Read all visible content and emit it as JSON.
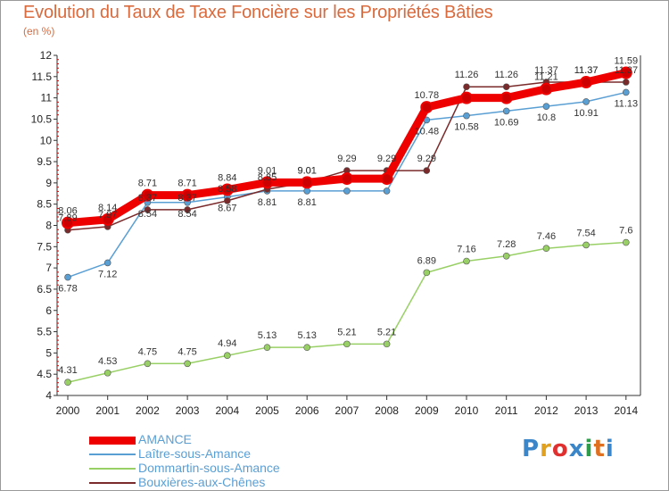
{
  "title": "Evolution du Taux de Taxe Foncière sur les Propriétés Bâties",
  "unit_label": "(en %)",
  "logo": {
    "text": "Proxiti",
    "letters": [
      "P",
      "r",
      "o",
      "x",
      "i",
      "t",
      "i"
    ],
    "colors": [
      "#3a86c8",
      "#e0a020",
      "#e03030",
      "#3a86c8",
      "#2e9c4a",
      "#e07020",
      "#3a86c8"
    ]
  },
  "chart_data": {
    "type": "line",
    "title": "Evolution du Taux de Taxe Foncière sur les Propriétés Bâties",
    "ylabel": "(en %)",
    "x": [
      "2000",
      "2001",
      "2002",
      "2003",
      "2004",
      "2005",
      "2006",
      "2007",
      "2008",
      "2009",
      "2010",
      "2011",
      "2012",
      "2013",
      "2014"
    ],
    "ylim": [
      4,
      12
    ],
    "yticks": [
      "4",
      "4.5",
      "5",
      "5.5",
      "6",
      "6.5",
      "7",
      "7.5",
      "8",
      "8.5",
      "9",
      "9.5",
      "10",
      "10.5",
      "11",
      "11.5",
      "12"
    ],
    "series": [
      {
        "name": "AMANCE",
        "color": "#ee0000",
        "values": [
          8.06,
          8.14,
          8.71,
          8.71,
          8.84,
          9.01,
          9.01,
          9.1,
          9.1,
          10.78,
          11.0,
          11.0,
          11.21,
          11.37,
          11.59
        ],
        "labels": [
          "8.06",
          "8.14",
          "8.71",
          "8.71",
          "8.84",
          "9.01",
          "9.01",
          "",
          "",
          "10.78",
          "",
          "",
          "11.21",
          "11.37",
          "11.59"
        ]
      },
      {
        "name": "Laître-sous-Amance",
        "color": "#5a9fd4",
        "values": [
          6.78,
          7.12,
          8.54,
          8.54,
          8.67,
          8.81,
          8.81,
          8.81,
          8.81,
          10.48,
          10.58,
          10.69,
          10.8,
          10.91,
          11.13
        ],
        "labels": [
          "6.78",
          "7.12",
          "8.54",
          "8.54",
          "8.67",
          "8.81",
          "8.81",
          "",
          "",
          "10.48",
          "10.58",
          "10.69",
          "10.8",
          "10.91",
          "11.13"
        ]
      },
      {
        "name": "Dommartin-sous-Amance",
        "color": "#99d066",
        "values": [
          4.31,
          4.53,
          4.75,
          4.75,
          4.94,
          5.13,
          5.13,
          5.21,
          5.21,
          6.89,
          7.16,
          7.28,
          7.46,
          7.54,
          7.6
        ],
        "labels": [
          "4.31",
          "4.53",
          "4.75",
          "4.75",
          "4.94",
          "5.13",
          "5.13",
          "5.21",
          "5.21",
          "6.89",
          "7.16",
          "7.28",
          "7.46",
          "7.54",
          "7.6"
        ]
      },
      {
        "name": "Bouxières-aux-Chênes",
        "color": "#7a2a2a",
        "values": [
          7.89,
          7.97,
          8.37,
          8.37,
          8.58,
          8.85,
          9.01,
          9.29,
          9.29,
          9.29,
          11.26,
          11.26,
          11.37,
          11.37,
          11.37
        ],
        "labels": [
          "7.89",
          "7.97",
          "8.37",
          "8.37",
          "8.58",
          "8.85",
          "9.01",
          "9.29",
          "9.29",
          "9.29",
          "11.26",
          "11.26",
          "11.37",
          "11.37",
          "11.37"
        ]
      }
    ],
    "legend_position": "bottom-left",
    "grid": false
  }
}
